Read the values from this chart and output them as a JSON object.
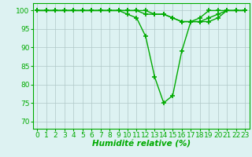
{
  "x_values": [
    0,
    1,
    2,
    3,
    4,
    5,
    6,
    7,
    8,
    9,
    10,
    11,
    12,
    13,
    14,
    15,
    16,
    17,
    18,
    19,
    20,
    21,
    22,
    23
  ],
  "series": [
    [
      100,
      100,
      100,
      100,
      100,
      100,
      100,
      100,
      100,
      100,
      99,
      98,
      93,
      82,
      75,
      77,
      89,
      97,
      98,
      100,
      100,
      100,
      100,
      100
    ],
    [
      100,
      100,
      100,
      100,
      100,
      100,
      100,
      100,
      100,
      100,
      100,
      100,
      100,
      99,
      99,
      98,
      97,
      97,
      97,
      98,
      99,
      100,
      100,
      100
    ],
    [
      100,
      100,
      100,
      100,
      100,
      100,
      100,
      100,
      100,
      100,
      100,
      100,
      99,
      99,
      99,
      98,
      97,
      97,
      97,
      97,
      98,
      100,
      100,
      100
    ]
  ],
  "line_color": "#00aa00",
  "marker": "+",
  "marker_size": 4,
  "marker_edge_width": 1.2,
  "bg_color": "#ddf2f2",
  "grid_color": "#b0c8c8",
  "xlabel": "Humidité relative (%)",
  "ylabel_ticks": [
    70,
    75,
    80,
    85,
    90,
    95,
    100
  ],
  "ylim": [
    68,
    102
  ],
  "xlim": [
    -0.5,
    23.5
  ],
  "xlabel_fontsize": 7.5,
  "tick_fontsize": 6.5,
  "line_width": 1.0
}
